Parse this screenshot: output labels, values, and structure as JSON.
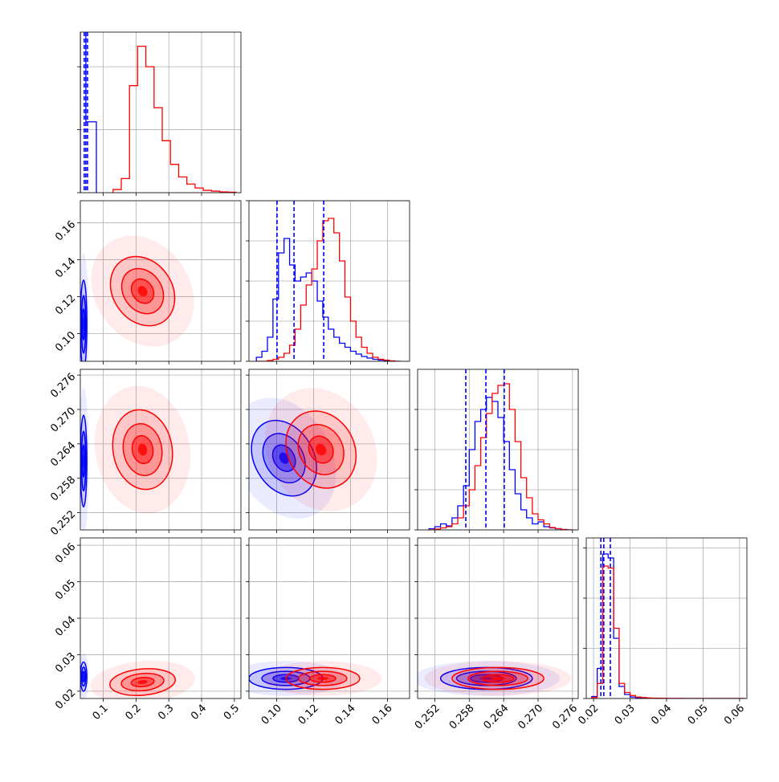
{
  "chart_data": {
    "type": "corner",
    "quantile_color": "#0000ff",
    "parameters": [
      {
        "lim": [
          0.03,
          0.52
        ],
        "ticks": [
          0.1,
          0.2,
          0.3,
          0.4,
          0.5
        ],
        "hist_ylim": [
          0,
          1020
        ],
        "hist_yticks": [
          0,
          400,
          800
        ],
        "quantiles": [
          0.042,
          0.047,
          0.052
        ]
      },
      {
        "lim": [
          0.085,
          0.172
        ],
        "ticks": [
          {
            "value": 0.1,
            "label": "0.10"
          },
          0.12,
          0.14,
          0.16
        ],
        "hist_ylim": [
          0,
          400
        ],
        "hist_yticks": [
          0,
          100,
          200,
          300,
          400
        ],
        "quantiles": [
          0.1002,
          0.1094,
          0.1255
        ]
      },
      {
        "lim": [
          0.249,
          0.277
        ],
        "ticks": [
          0.252,
          0.258,
          0.264,
          {
            "value": 0.27,
            "label": "0.270"
          },
          0.276
        ],
        "hist_ylim": [
          0,
          400
        ],
        "hist_yticks": [
          0,
          100,
          200,
          300
        ],
        "quantiles": [
          0.2574,
          0.2609,
          0.2641
        ]
      },
      {
        "lim": [
          0.018,
          0.062
        ],
        "ticks": [
          {
            "value": 0.02,
            "label": "0.02"
          },
          0.03,
          0.04,
          0.05,
          0.06
        ],
        "hist_ylim": [
          0,
          1600
        ],
        "hist_yticks": [
          0,
          500,
          1000,
          1500
        ],
        "quantiles": [
          0.022,
          0.0228,
          0.0246
        ]
      }
    ],
    "series": [
      {
        "color": "#0000ff",
        "hist": [
          {
            "bins": [
              0.03,
              0.047,
              0.079
            ],
            "counts": [
              1300,
              450
            ]
          },
          {
            "bins": [
              0.089,
              0.092,
              0.095,
              0.098,
              0.101,
              0.104,
              0.107,
              0.11,
              0.113,
              0.116,
              0.119,
              0.122,
              0.125,
              0.128,
              0.131,
              0.134,
              0.137,
              0.14,
              0.143,
              0.146,
              0.149,
              0.152,
              0.155,
              0.158,
              0.161,
              0.164,
              0.167
            ],
            "counts": [
              10,
              25,
              60,
              155,
              270,
              306,
              240,
              200,
              210,
              220,
              200,
              150,
              110,
              80,
              60,
              45,
              35,
              25,
              18,
              12,
              8,
              5,
              3,
              2,
              1,
              0
            ]
          },
          {
            "bins": [
              0.251,
              0.252,
              0.253,
              0.254,
              0.255,
              0.256,
              0.257,
              0.258,
              0.259,
              0.26,
              0.261,
              0.262,
              0.263,
              0.264,
              0.265,
              0.266,
              0.267,
              0.268,
              0.269,
              0.27,
              0.271,
              0.272,
              0.273,
              0.274,
              0.275,
              0.276
            ],
            "counts": [
              3,
              8,
              15,
              10,
              30,
              60,
              110,
              200,
              270,
              300,
              330,
              320,
              280,
              220,
              150,
              90,
              50,
              30,
              15,
              20,
              8,
              5,
              3,
              1,
              0
            ]
          },
          {
            "bins": [
              0.0195,
              0.021,
              0.0225,
              0.024,
              0.0255,
              0.027,
              0.0285,
              0.03,
              0.0315,
              0.033,
              0.0345,
              0.036,
              0.0375,
              0.039,
              0.0405,
              0.042,
              0.0435,
              0.045,
              0.0465,
              0.048,
              0.0495,
              0.051,
              0.0525,
              0.054,
              0.0555,
              0.057,
              0.0585,
              0.06,
              0.0615
            ],
            "counts": [
              20,
              300,
              1440,
              1400,
              600,
              120,
              40,
              15,
              8,
              5,
              3,
              2,
              1,
              1,
              0,
              0,
              0,
              0,
              0,
              0,
              0,
              0,
              0,
              0,
              0,
              0,
              0,
              0
            ]
          }
        ]
      },
      {
        "color": "#ff0000",
        "hist": [
          {
            "bins": [
              0.13,
              0.155,
              0.18,
              0.205,
              0.23,
              0.255,
              0.28,
              0.305,
              0.33,
              0.355,
              0.38,
              0.405,
              0.43,
              0.455,
              0.48,
              0.505
            ],
            "counts": [
              20,
              90,
              680,
              930,
              800,
              540,
              330,
              180,
              100,
              55,
              30,
              15,
              10,
              5,
              3
            ]
          },
          {
            "bins": [
              0.089,
              0.092,
              0.095,
              0.098,
              0.101,
              0.104,
              0.107,
              0.11,
              0.113,
              0.116,
              0.119,
              0.122,
              0.125,
              0.128,
              0.131,
              0.134,
              0.137,
              0.14,
              0.143,
              0.146,
              0.149,
              0.152,
              0.155,
              0.158,
              0.161,
              0.164,
              0.167
            ],
            "counts": [
              0,
              0,
              2,
              5,
              10,
              20,
              40,
              80,
              140,
              190,
              230,
              300,
              350,
              356,
              320,
              250,
              160,
              100,
              60,
              35,
              20,
              10,
              5,
              3,
              1,
              0
            ]
          },
          {
            "bins": [
              0.251,
              0.252,
              0.253,
              0.254,
              0.255,
              0.256,
              0.257,
              0.258,
              0.259,
              0.26,
              0.261,
              0.262,
              0.263,
              0.264,
              0.265,
              0.266,
              0.267,
              0.268,
              0.269,
              0.27,
              0.271,
              0.272,
              0.273,
              0.274,
              0.275,
              0.276
            ],
            "counts": [
              0,
              2,
              5,
              8,
              15,
              30,
              60,
              100,
              160,
              230,
              290,
              340,
              360,
              364,
              300,
              220,
              130,
              80,
              40,
              25,
              15,
              6,
              3,
              1,
              0
            ]
          },
          {
            "bins": [
              0.0195,
              0.021,
              0.0225,
              0.024,
              0.0255,
              0.027,
              0.0285,
              0.03,
              0.0315,
              0.033,
              0.0345,
              0.036,
              0.0375,
              0.039,
              0.0405,
              0.042,
              0.0435,
              0.045,
              0.0465,
              0.048,
              0.0495,
              0.051,
              0.0525,
              0.054,
              0.0555,
              0.057,
              0.0585,
              0.06,
              0.0615
            ],
            "counts": [
              10,
              150,
              1320,
              1300,
              700,
              150,
              60,
              30,
              15,
              10,
              6,
              4,
              3,
              2,
              1,
              1,
              1,
              0,
              0,
              0,
              0,
              0,
              0,
              0,
              0,
              0,
              0,
              0
            ]
          }
        ]
      }
    ],
    "pairs": [
      {
        "x": 0,
        "y": 1,
        "density": [
          {
            "center": [
              0.04,
              0.105
            ],
            "sigma": [
              0.005,
              0.012
            ],
            "rotation": 0
          },
          {
            "center": [
              0.22,
              0.123
            ],
            "sigma": [
              0.045,
              0.01
            ],
            "rotation": -35
          }
        ]
      },
      {
        "x": 0,
        "y": 2,
        "density": [
          {
            "center": [
              0.04,
              0.261
            ],
            "sigma": [
              0.005,
              0.004
            ],
            "rotation": 0
          },
          {
            "center": [
              0.22,
              0.263
            ],
            "sigma": [
              0.045,
              0.0035
            ],
            "rotation": -10
          }
        ]
      },
      {
        "x": 1,
        "y": 2,
        "density": [
          {
            "center": [
              0.104,
              0.2615
            ],
            "sigma": [
              0.008,
              0.0035
            ],
            "rotation": -30
          },
          {
            "center": [
              0.124,
              0.263
            ],
            "sigma": [
              0.009,
              0.0035
            ],
            "rotation": -30
          }
        ]
      },
      {
        "x": 0,
        "y": 3,
        "density": [
          {
            "center": [
              0.04,
              0.024
            ],
            "sigma": [
              0.005,
              0.002
            ],
            "rotation": 0
          },
          {
            "center": [
              0.22,
              0.0225
            ],
            "sigma": [
              0.05,
              0.0018
            ],
            "rotation": -5
          }
        ]
      },
      {
        "x": 1,
        "y": 3,
        "density": [
          {
            "center": [
              0.105,
              0.0235
            ],
            "sigma": [
              0.01,
              0.0015
            ],
            "rotation": 0
          },
          {
            "center": [
              0.125,
              0.0235
            ],
            "sigma": [
              0.01,
              0.0015
            ],
            "rotation": 0
          }
        ]
      },
      {
        "x": 2,
        "y": 3,
        "density": [
          {
            "center": [
              0.261,
              0.0235
            ],
            "sigma": [
              0.004,
              0.0015
            ],
            "rotation": 0
          },
          {
            "center": [
              0.263,
              0.0235
            ],
            "sigma": [
              0.004,
              0.0015
            ],
            "rotation": 0
          }
        ]
      }
    ]
  }
}
